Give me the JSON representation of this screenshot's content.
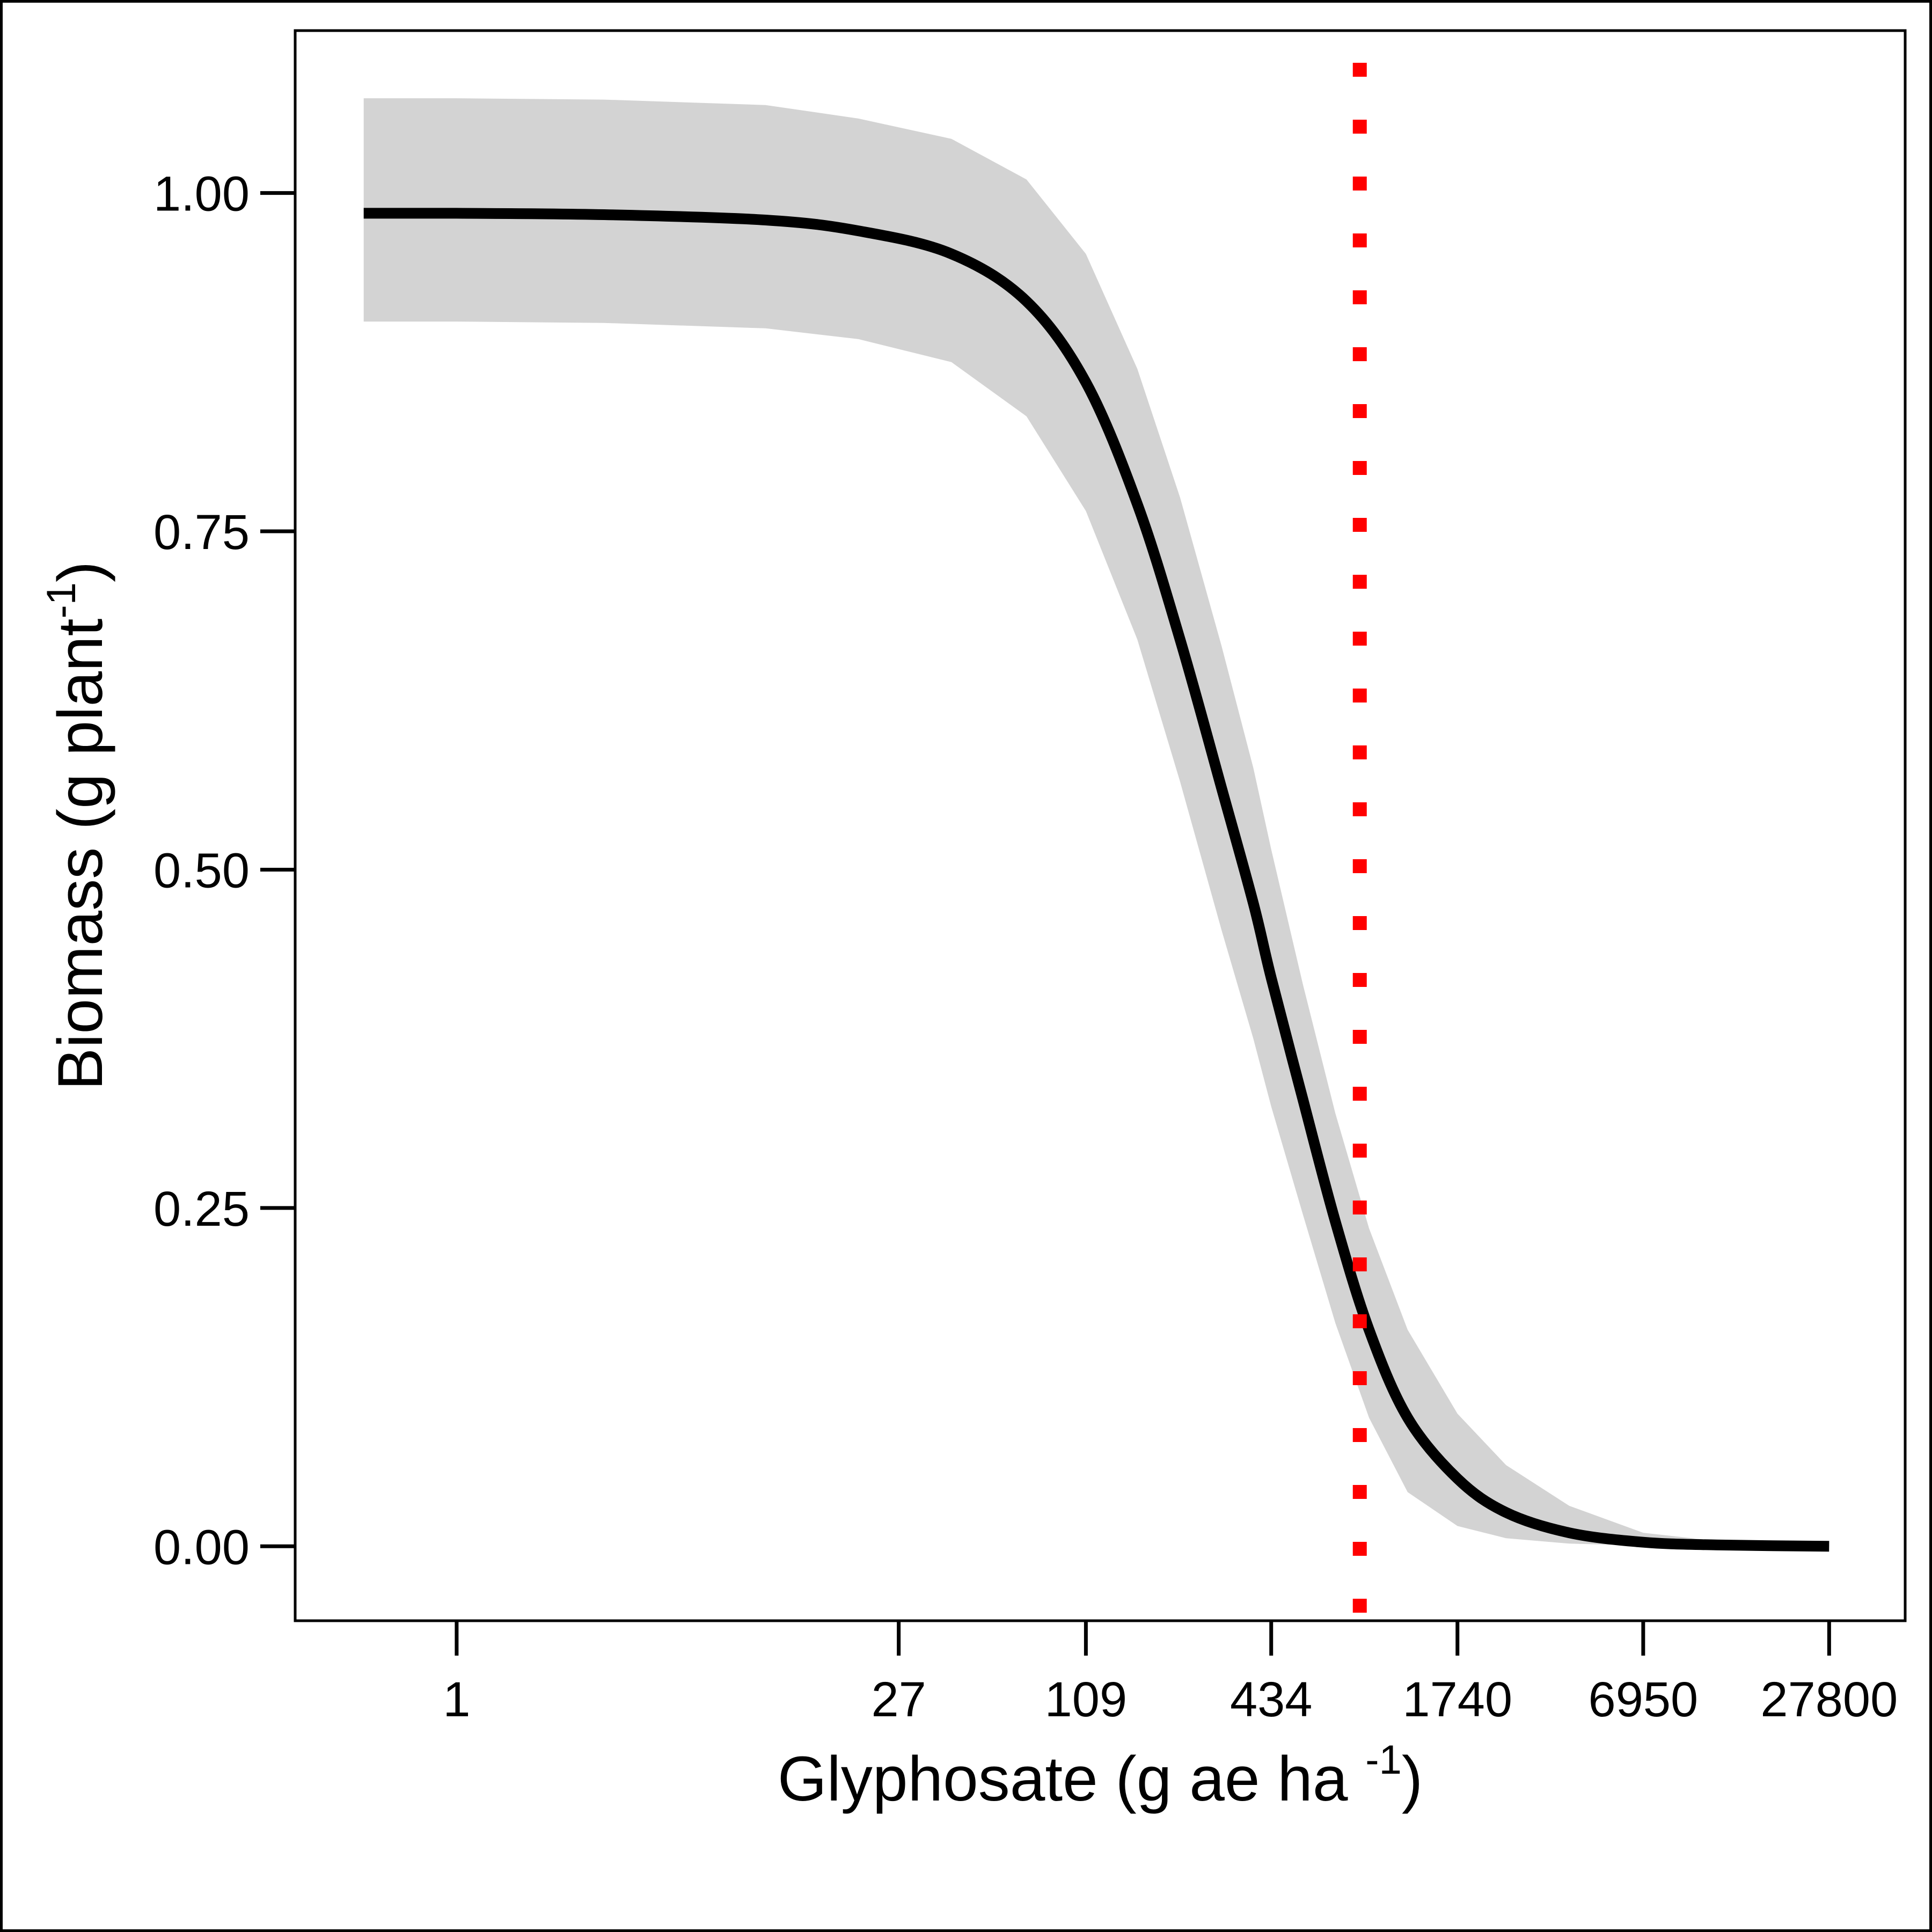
{
  "chart_data": {
    "type": "line",
    "xlabel": {
      "text": "Glyphosate (g ae ha ",
      "superscript": "-1",
      "suffix": ")"
    },
    "ylabel": {
      "text": "Biomass (g plant",
      "superscript": "-1",
      "suffix": ")"
    },
    "x_scale": "log",
    "xlim": [
      0.3,
      49000
    ],
    "ylim": [
      -0.055,
      1.12
    ],
    "x_ticks": [
      {
        "value": 1,
        "label": "1"
      },
      {
        "value": 27,
        "label": "27"
      },
      {
        "value": 109,
        "label": "109"
      },
      {
        "value": 434,
        "label": "434"
      },
      {
        "value": 1740,
        "label": "1740"
      },
      {
        "value": 6950,
        "label": "6950"
      },
      {
        "value": 27800,
        "label": "27800"
      }
    ],
    "y_ticks": [
      {
        "value": 0.0,
        "label": "0.00"
      },
      {
        "value": 0.25,
        "label": "0.25"
      },
      {
        "value": 0.5,
        "label": "0.50"
      },
      {
        "value": 0.75,
        "label": "0.75"
      },
      {
        "value": 1.0,
        "label": "1.00"
      }
    ],
    "grid": false,
    "reference_line": {
      "x": 840,
      "color": "#ff0000",
      "style": "dotted"
    },
    "series": [
      {
        "color": "#000000",
        "x": [
          0.5,
          1,
          3,
          10,
          20,
          40,
          70,
          109,
          160,
          220,
          300,
          380,
          434,
          550,
          700,
          900,
          1200,
          1740,
          2500,
          4000,
          6950,
          12000,
          27800
        ],
        "y": [
          0.985,
          0.985,
          0.984,
          0.98,
          0.972,
          0.955,
          0.92,
          0.86,
          0.77,
          0.67,
          0.56,
          0.475,
          0.42,
          0.33,
          0.24,
          0.16,
          0.095,
          0.05,
          0.025,
          0.01,
          0.003,
          0.001,
          0.0
        ]
      }
    ],
    "confidence_band": {
      "color": "#d3d3d3",
      "x": [
        0.5,
        1,
        3,
        10,
        20,
        40,
        70,
        109,
        160,
        220,
        300,
        380,
        434,
        550,
        700,
        900,
        1200,
        1740,
        2500,
        4000,
        6950,
        12000,
        27800
      ],
      "upper": [
        1.07,
        1.07,
        1.069,
        1.065,
        1.055,
        1.04,
        1.01,
        0.955,
        0.87,
        0.775,
        0.665,
        0.575,
        0.515,
        0.415,
        0.32,
        0.235,
        0.16,
        0.098,
        0.06,
        0.03,
        0.01,
        0.004,
        0.001
      ],
      "lower": [
        0.905,
        0.905,
        0.904,
        0.9,
        0.892,
        0.875,
        0.835,
        0.765,
        0.67,
        0.565,
        0.455,
        0.375,
        0.325,
        0.245,
        0.165,
        0.095,
        0.04,
        0.015,
        0.006,
        0.002,
        0.0005,
        0.0,
        0.0
      ]
    }
  }
}
